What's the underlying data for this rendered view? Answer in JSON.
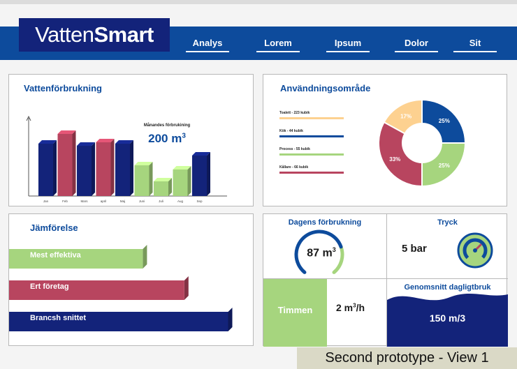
{
  "header": {
    "logo_regular": "Vatten",
    "logo_bold": "Smart",
    "nav": [
      "Analys",
      "Lorem",
      "Ipsum",
      "Dolor",
      "Sit"
    ]
  },
  "colors": {
    "navy": "#13237a",
    "blue": "#0d4b9c",
    "red": "#b8455f",
    "green": "#a6d57e",
    "peach": "#fdd190"
  },
  "consumption": {
    "title": "Vattenförbrukning",
    "monthly_label": "Månandes förbrukining",
    "monthly_value": "200 m",
    "monthly_sup": "3"
  },
  "usage": {
    "title": "Användningsområde",
    "legend": [
      {
        "label": "Toalett - 223 kubik",
        "color": "#fdd190"
      },
      {
        "label": "Kök - 44 kubik",
        "color": "#0d4b9c"
      },
      {
        "label": "Process - 55 kubik",
        "color": "#a6d57e"
      },
      {
        "label": "Kållare - 66 kubik",
        "color": "#b8455f"
      }
    ]
  },
  "comparison": {
    "title": "Jämförelse",
    "bars": [
      {
        "label": "Mest effektiva",
        "color": "#a6d57e",
        "value": 0.58
      },
      {
        "label": "Ert företag",
        "color": "#b8455f",
        "value": 0.76
      },
      {
        "label": "Brancsh snittet",
        "color": "#13237a",
        "value": 0.95
      }
    ]
  },
  "daily": {
    "title": "Dagens förbrukning",
    "value": "87 m",
    "sup": "3",
    "gauge_level": 0.75
  },
  "pressure": {
    "title": "Tryck",
    "value": "5 bar"
  },
  "timmen": {
    "label": "Timmen",
    "value": "2 m",
    "sup": "3",
    "unit": "/h"
  },
  "average": {
    "title": "Genomsnitt dagligtbruk",
    "value": "150 m/3"
  },
  "caption": "Second prototype - View 1",
  "chart_data": [
    {
      "type": "bar",
      "title": "Vattenförbrukning",
      "categories": [
        "Jan",
        "Feb",
        "Mars",
        "april",
        "Maj",
        "Juni",
        "Juli",
        "Aug",
        "Sep"
      ],
      "values": [
        150,
        178,
        144,
        154,
        150,
        88,
        42,
        76,
        116
      ],
      "colors": [
        "#13237a",
        "#b8455f",
        "#13237a",
        "#b8455f",
        "#13237a",
        "#a6d57e",
        "#a6d57e",
        "#a6d57e",
        "#13237a"
      ],
      "ylim": [
        0,
        220
      ]
    },
    {
      "type": "pie",
      "title": "Användningsområde",
      "labels": [
        "25%",
        "25%",
        "33%",
        "17%"
      ],
      "values": [
        25,
        25,
        33,
        17
      ],
      "colors": [
        "#0d4b9c",
        "#a6d57e",
        "#b8455f",
        "#fdd190"
      ]
    }
  ]
}
